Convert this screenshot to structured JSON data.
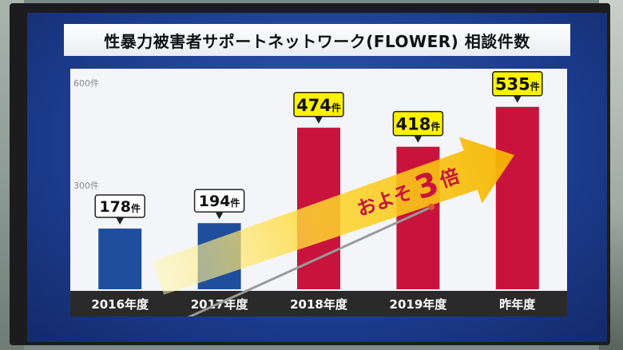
{
  "title": "性暴力被害者サポートネットワーク(FLOWER) 相談件数",
  "chart_data": {
    "type": "bar",
    "title": "性暴力被害者サポートネットワーク(FLOWER) 相談件数",
    "categories": [
      "2016年度",
      "2017年度",
      "2018年度",
      "2019年度",
      "昨年度"
    ],
    "values": [
      178,
      194,
      474,
      418,
      535
    ],
    "data_labels": [
      "178件",
      "194件",
      "474件",
      "418件",
      "535件"
    ],
    "ylim": [
      0,
      600
    ],
    "yticks": [
      {
        "value": 300,
        "label": "300件"
      },
      {
        "value": 600,
        "label": "600件"
      }
    ],
    "bar_colors": [
      "#1f4f9c",
      "#1f4f9c",
      "#c8143c",
      "#c8143c",
      "#c8143c"
    ],
    "grid": false,
    "annotation": {
      "text_before": "およそ",
      "number": "3",
      "text_after": "倍",
      "arrow_color": "#f5c400",
      "text_color": "#c8143c"
    }
  },
  "colors": {
    "screen_bg": "#1d3f93",
    "plot_bg": "#f4f5f8",
    "label_bg": "#fff200",
    "category_strip": "#2a2a2a"
  }
}
